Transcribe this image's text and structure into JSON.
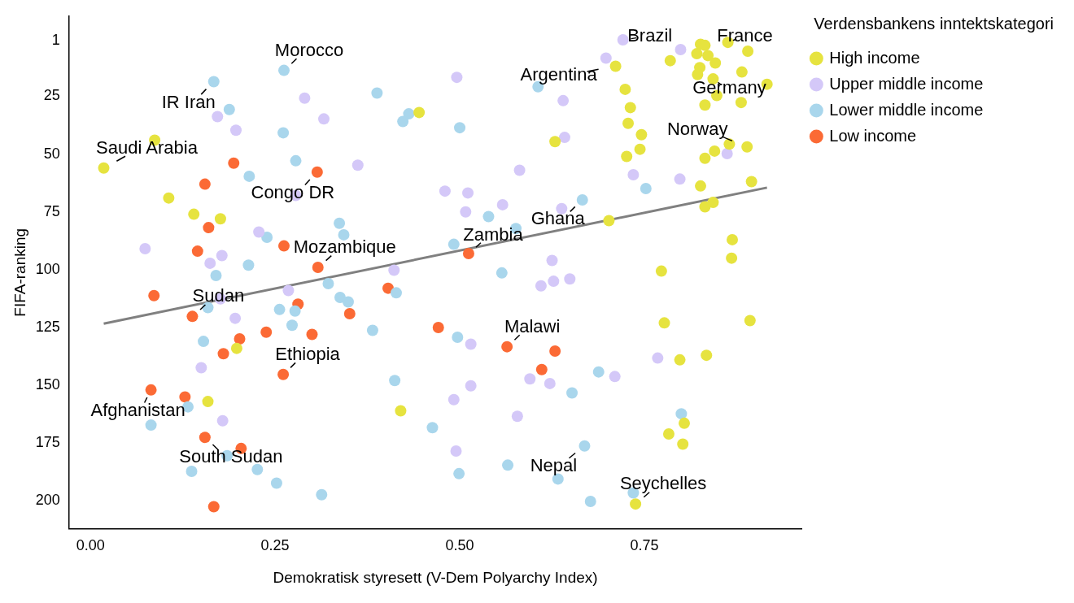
{
  "chart_data": {
    "type": "scatter",
    "xlabel": "Demokratisk styresett (V-Dem Polyarchy Index)",
    "ylabel": "FIFA-ranking",
    "legend_title": "Verdensbankens inntektskategori",
    "legend": "right",
    "grid": false,
    "marker": "circle",
    "xlim": [
      -0.029,
      0.963
    ],
    "xticks": [
      {
        "value": 0,
        "label": "0.00"
      },
      {
        "value": 0.25,
        "label": "0.25"
      },
      {
        "value": 0.5,
        "label": "0.50"
      },
      {
        "value": 0.75,
        "label": "0.75"
      }
    ],
    "ylim": [
      212,
      -9.6
    ],
    "yticks": [
      1,
      25,
      50,
      75,
      100,
      125,
      150,
      175,
      200
    ],
    "series": [
      {
        "name": "High income",
        "color": "#e6e33f",
        "x": [
          0.018,
          0.087,
          0.106,
          0.14,
          0.176,
          0.198,
          0.159,
          0.445,
          0.42,
          0.711,
          0.826,
          0.832,
          0.863,
          0.89,
          0.785,
          0.821,
          0.836,
          0.846,
          0.882,
          0.825,
          0.822,
          0.843,
          0.848,
          0.916,
          0.724,
          0.731,
          0.832,
          0.881,
          0.728,
          0.746,
          0.744,
          0.726,
          0.865,
          0.889,
          0.845,
          0.832,
          0.895,
          0.826,
          0.832,
          0.843,
          0.702,
          0.869,
          0.868,
          0.773,
          0.629,
          0.777,
          0.893,
          0.798,
          0.834,
          0.804,
          0.783,
          0.802,
          0.738
        ],
        "values": [
          56,
          44,
          69,
          76,
          78,
          134,
          157,
          32,
          161,
          12,
          2.5,
          3,
          1.7,
          5.5,
          9.6,
          6.6,
          7.4,
          10.6,
          14.5,
          12.6,
          15.6,
          17.5,
          24.7,
          19.8,
          22,
          29.9,
          28.8,
          27.7,
          36.7,
          41.6,
          47.9,
          51,
          45.7,
          46.9,
          48.7,
          51.8,
          61.9,
          63.8,
          72.8,
          70.9,
          78.8,
          87,
          95,
          100.6,
          44.6,
          123,
          122,
          139,
          137,
          166.4,
          171,
          175.4,
          201.3
        ]
      },
      {
        "name": "Upper middle income",
        "color": "#d4c8f8",
        "x": [
          0.29,
          0.172,
          0.197,
          0.278,
          0.228,
          0.074,
          0.162,
          0.178,
          0.316,
          0.496,
          0.362,
          0.581,
          0.48,
          0.511,
          0.558,
          0.508,
          0.625,
          0.411,
          0.64,
          0.638,
          0.721,
          0.698,
          0.642,
          0.799,
          0.862,
          0.735,
          0.798,
          0.268,
          0.176,
          0.196,
          0.15,
          0.179,
          0.61,
          0.627,
          0.649,
          0.515,
          0.595,
          0.622,
          0.515,
          0.492,
          0.578,
          0.495,
          0.768,
          0.71
        ],
        "values": [
          25.8,
          33.8,
          39.7,
          67.9,
          83.7,
          90.9,
          97.2,
          93.9,
          34.8,
          16.8,
          54.8,
          57,
          66,
          66.8,
          71.9,
          75,
          96,
          100.2,
          26.9,
          73.6,
          0.6,
          8.5,
          42.8,
          4.8,
          49.8,
          58.9,
          60.8,
          109,
          112.6,
          121,
          142.4,
          165.3,
          107,
          105,
          104,
          132.2,
          147.2,
          149.2,
          150.2,
          156.2,
          163.4,
          178.4,
          138.2,
          146.2
        ]
      },
      {
        "name": "Lower middle income",
        "color": "#a9d6ec",
        "x": [
          0.167,
          0.188,
          0.262,
          0.261,
          0.278,
          0.215,
          0.239,
          0.214,
          0.17,
          0.388,
          0.431,
          0.423,
          0.5,
          0.606,
          0.337,
          0.343,
          0.492,
          0.539,
          0.576,
          0.557,
          0.666,
          0.752,
          0.159,
          0.256,
          0.277,
          0.273,
          0.153,
          0.132,
          0.082,
          0.185,
          0.137,
          0.226,
          0.252,
          0.313,
          0.322,
          0.338,
          0.349,
          0.414,
          0.382,
          0.497,
          0.412,
          0.463,
          0.565,
          0.499,
          0.688,
          0.652,
          0.8,
          0.669,
          0.633,
          0.677,
          0.735
        ],
        "values": [
          18.7,
          30.7,
          13.8,
          40.8,
          52.9,
          59.6,
          86,
          98,
          102.5,
          23.6,
          32.6,
          35.9,
          38.6,
          20.9,
          79.9,
          84.9,
          89,
          77,
          82.2,
          101.4,
          69.8,
          64.9,
          116.4,
          117.2,
          117.9,
          124,
          131,
          159.3,
          167.2,
          180.4,
          187.2,
          186.4,
          192.3,
          197.3,
          106,
          112,
          113.9,
          110,
          126.2,
          129.2,
          147.9,
          168.3,
          184.5,
          188.2,
          144.2,
          153.3,
          162.3,
          176.2,
          190.5,
          200.2,
          196.5
        ]
      },
      {
        "name": "Low income",
        "color": "#fb6a35",
        "x": [
          0.194,
          0.155,
          0.307,
          0.16,
          0.145,
          0.262,
          0.308,
          0.512,
          0.086,
          0.138,
          0.281,
          0.202,
          0.18,
          0.238,
          0.3,
          0.261,
          0.082,
          0.128,
          0.155,
          0.204,
          0.167,
          0.403,
          0.351,
          0.471,
          0.564,
          0.629,
          0.611
        ],
        "values": [
          53.9,
          63,
          57.8,
          81.8,
          92,
          89.7,
          99,
          93,
          111.2,
          120.2,
          114.9,
          129.9,
          136.3,
          127,
          128,
          145.3,
          152,
          155,
          172.5,
          177.3,
          202.5,
          108,
          119,
          125,
          133.3,
          135.2,
          143.2
        ]
      },
      {
        "type": "line",
        "marker": "none",
        "color": "#808080",
        "x": [
          0.018,
          0.916
        ],
        "values": [
          123.3,
          64.5
        ]
      }
    ],
    "annotations": [
      {
        "text": "Morocco",
        "x": 0.262,
        "y": 13.8
      },
      {
        "text": "IR Iran",
        "x": 0.167,
        "y": 18.7
      },
      {
        "text": "Saudi Arabia",
        "x": 0.018,
        "y": 56
      },
      {
        "text": "Congo DR",
        "x": 0.307,
        "y": 57.8
      },
      {
        "text": "Mozambique",
        "x": 0.308,
        "y": 99
      },
      {
        "text": "Zambia",
        "x": 0.512,
        "y": 93
      },
      {
        "text": "Ghana",
        "x": 0.666,
        "y": 69.8
      },
      {
        "text": "Argentina",
        "x": 0.711,
        "y": 12
      },
      {
        "text": "Brazil",
        "x": 0.721,
        "y": 0.6
      },
      {
        "text": "France",
        "x": 0.863,
        "y": 1.7
      },
      {
        "text": "Germany",
        "x": 0.843,
        "y": 17.5
      },
      {
        "text": "Norway",
        "x": 0.889,
        "y": 46.9
      },
      {
        "text": "Sudan",
        "x": 0.138,
        "y": 120.2
      },
      {
        "text": "Ethiopia",
        "x": 0.261,
        "y": 145.3
      },
      {
        "text": "Malawi",
        "x": 0.564,
        "y": 133.3
      },
      {
        "text": "Afghanistan",
        "x": 0.082,
        "y": 152
      },
      {
        "text": "South Sudan",
        "x": 0.155,
        "y": 172.5
      },
      {
        "text": "Nepal",
        "x": 0.669,
        "y": 176.2
      },
      {
        "text": "Seychelles",
        "x": 0.738,
        "y": 201.3
      }
    ]
  }
}
